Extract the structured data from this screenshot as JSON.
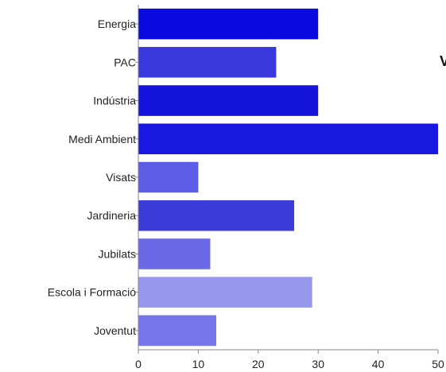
{
  "chart_data": {
    "type": "bar",
    "orientation": "horizontal",
    "categories": [
      "Energia",
      "PAC",
      "Indústria",
      "Medi Ambient",
      "Visats",
      "Jardineria",
      "Jubilats",
      "Escola i Formació",
      "Joventut"
    ],
    "values": [
      30,
      23,
      30,
      50,
      10,
      26,
      12,
      29,
      13
    ],
    "colors": [
      "#0a0ae0",
      "#3a3adc",
      "#1414dd",
      "#1818e0",
      "#5c5ce6",
      "#3c3cd8",
      "#6a6ae6",
      "#9898ee",
      "#7676ea"
    ],
    "xlim": [
      0,
      50
    ],
    "xticks": [
      "0",
      "10",
      "20",
      "30",
      "40",
      "50"
    ],
    "title": "",
    "xlabel": "",
    "ylabel": "",
    "grid": false,
    "legend": "none"
  },
  "partial_text": "V"
}
